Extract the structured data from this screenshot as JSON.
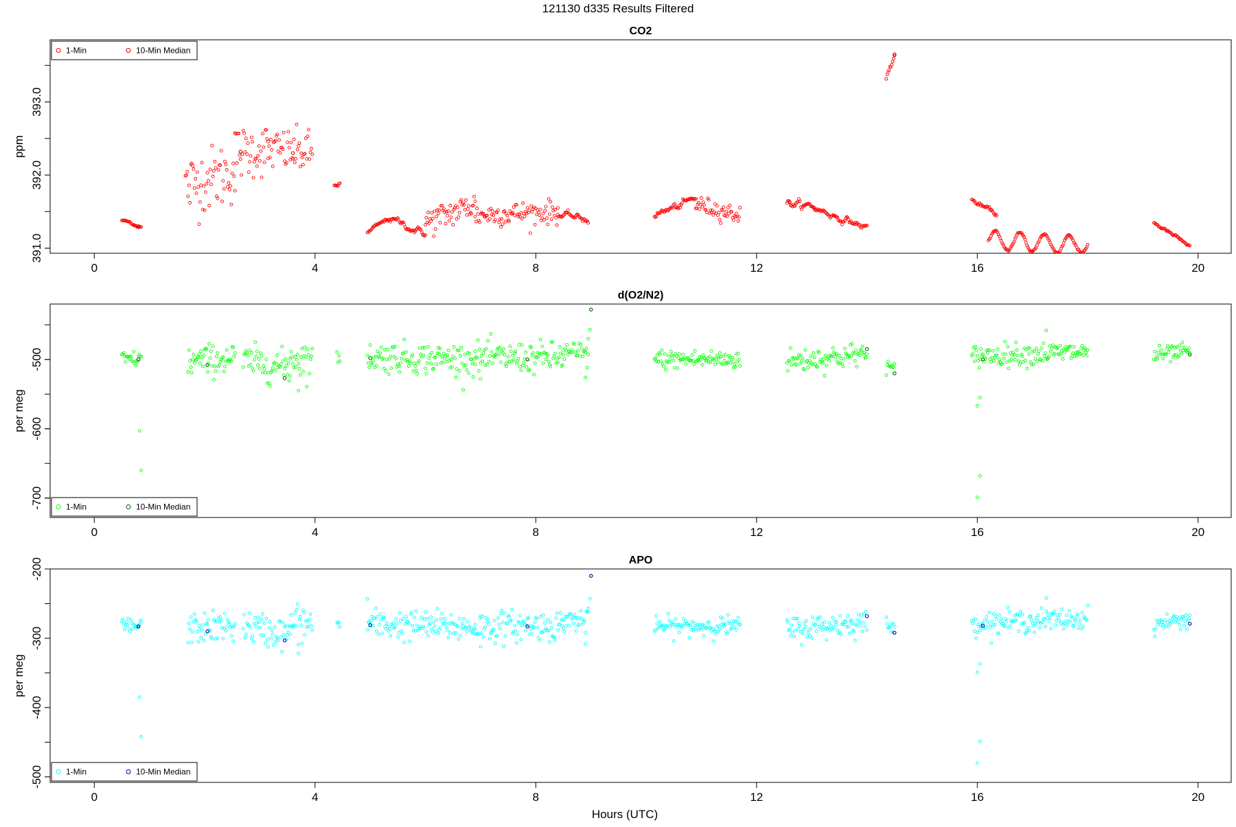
{
  "figure": {
    "title": "121130   d335   Results Filtered",
    "xlabel": "Hours (UTC)"
  },
  "chart_data": [
    {
      "type": "scatter",
      "title": "CO2",
      "xlabel": "",
      "ylabel": "ppm",
      "xlim": [
        -0.8,
        20.6
      ],
      "ylim": [
        390.93,
        393.85
      ],
      "x_ticks": [
        0,
        4,
        8,
        12,
        16,
        20
      ],
      "y_ticks": [
        391.0,
        392.0,
        393.0
      ],
      "y_tick_labels": [
        "391.0",
        "392.0",
        "393.0"
      ],
      "grid": false,
      "legend": {
        "placement": "top-left",
        "entries": [
          "1-Min",
          "10-Min Median"
        ]
      },
      "colors": {
        "one_min": "#ff0000",
        "median": "#cc0000"
      },
      "segments": [
        {
          "x": [
            0.5,
            0.85
          ],
          "y": [
            391.38,
            391.3
          ],
          "noise": 0.02,
          "style": "smooth"
        },
        {
          "x": [
            1.65,
            2.55
          ],
          "y": [
            391.85,
            392.05
          ],
          "noise": 0.22,
          "style": "scatter"
        },
        {
          "x": [
            2.55,
            3.15
          ],
          "y": [
            392.3,
            392.35
          ],
          "noise": 0.18,
          "style": "scatter"
        },
        {
          "x": [
            3.15,
            3.95
          ],
          "y": [
            392.35,
            392.3
          ],
          "noise": 0.15,
          "style": "scatter"
        },
        {
          "x": [
            4.35,
            4.45
          ],
          "y": [
            391.85,
            391.9
          ],
          "noise": 0.04,
          "style": "smooth"
        },
        {
          "x": [
            4.95,
            5.35
          ],
          "y": [
            391.2,
            391.4
          ],
          "noise": 0.03,
          "style": "smooth"
        },
        {
          "x": [
            5.35,
            6.0
          ],
          "y": [
            391.4,
            391.2
          ],
          "noise": 0.04,
          "style": "smooth"
        },
        {
          "x": [
            6.0,
            6.9
          ],
          "y": [
            391.35,
            391.6
          ],
          "noise": 0.1,
          "style": "scatter"
        },
        {
          "x": [
            6.9,
            8.4
          ],
          "y": [
            391.45,
            391.5
          ],
          "noise": 0.08,
          "style": "scatter"
        },
        {
          "x": [
            8.4,
            8.95
          ],
          "y": [
            391.45,
            391.38
          ],
          "noise": 0.04,
          "style": "smooth"
        },
        {
          "x": [
            10.15,
            10.9
          ],
          "y": [
            391.45,
            391.65
          ],
          "noise": 0.05,
          "style": "smooth"
        },
        {
          "x": [
            10.9,
            11.7
          ],
          "y": [
            391.6,
            391.45
          ],
          "noise": 0.06,
          "style": "scatter"
        },
        {
          "x": [
            12.55,
            13.05
          ],
          "y": [
            391.62,
            391.55
          ],
          "noise": 0.05,
          "style": "smooth"
        },
        {
          "x": [
            13.05,
            14.0
          ],
          "y": [
            391.55,
            391.28
          ],
          "noise": 0.04,
          "style": "smooth"
        },
        {
          "x": [
            14.35,
            14.5
          ],
          "y": [
            393.35,
            393.65
          ],
          "noise": 0.06,
          "style": "smooth"
        },
        {
          "x": [
            15.9,
            16.35
          ],
          "y": [
            391.65,
            391.45
          ],
          "noise": 0.03,
          "style": "smooth"
        },
        {
          "x": [
            16.2,
            18.0
          ],
          "y": [
            391.1,
            391.05
          ],
          "noise": 0.02,
          "wave": 0.13,
          "style": "smooth"
        },
        {
          "x": [
            19.2,
            19.85
          ],
          "y": [
            391.35,
            391.02
          ],
          "noise": 0.02,
          "style": "smooth"
        }
      ],
      "outliers": [],
      "median_points": [
        {
          "x": 0.8,
          "y": 391.3
        },
        {
          "x": 2.65,
          "y": 392.32
        },
        {
          "x": 3.6,
          "y": 392.3
        },
        {
          "x": 12.6,
          "y": 391.63
        },
        {
          "x": 14.5,
          "y": 393.65
        }
      ]
    },
    {
      "type": "scatter",
      "title": "d(O2/N2)",
      "xlabel": "",
      "ylabel": "per meg",
      "xlim": [
        -0.8,
        20.6
      ],
      "ylim": [
        -728,
        -420
      ],
      "x_ticks": [
        0,
        4,
        8,
        12,
        16,
        20
      ],
      "y_ticks": [
        -500,
        -600,
        -700
      ],
      "y_tick_labels": [
        "-500",
        "-600",
        "-700"
      ],
      "grid": false,
      "legend": {
        "placement": "bottom-left",
        "entries": [
          "1-Min",
          "10-Min Median"
        ]
      },
      "colors": {
        "one_min": "#00ff00",
        "median": "#006600"
      },
      "segments": [
        {
          "x": [
            0.5,
            0.85
          ],
          "y": [
            -500,
            -500
          ],
          "noise": 6,
          "style": "scatter"
        },
        {
          "x": [
            1.7,
            2.55
          ],
          "y": [
            -503,
            -498
          ],
          "noise": 11,
          "style": "scatter"
        },
        {
          "x": [
            2.7,
            3.55
          ],
          "y": [
            -502,
            -512
          ],
          "noise": 12,
          "style": "scatter"
        },
        {
          "x": [
            3.55,
            3.95
          ],
          "y": [
            -497,
            -500
          ],
          "noise": 14,
          "style": "scatter"
        },
        {
          "x": [
            4.4,
            4.45
          ],
          "y": [
            -497,
            -500
          ],
          "noise": 4,
          "style": "scatter"
        },
        {
          "x": [
            4.95,
            6.9
          ],
          "y": [
            -496,
            -500
          ],
          "noise": 11,
          "style": "scatter"
        },
        {
          "x": [
            6.9,
            8.5
          ],
          "y": [
            -498,
            -497
          ],
          "noise": 11,
          "style": "scatter"
        },
        {
          "x": [
            8.5,
            8.95
          ],
          "y": [
            -490,
            -493
          ],
          "noise": 9,
          "style": "scatter"
        },
        {
          "x": [
            10.15,
            11.7
          ],
          "y": [
            -500,
            -500
          ],
          "noise": 7,
          "style": "scatter"
        },
        {
          "x": [
            12.55,
            14.0
          ],
          "y": [
            -503,
            -492
          ],
          "noise": 9,
          "style": "scatter"
        },
        {
          "x": [
            14.35,
            14.5
          ],
          "y": [
            -508,
            -515
          ],
          "noise": 5,
          "style": "scatter"
        },
        {
          "x": [
            15.9,
            18.0
          ],
          "y": [
            -495,
            -489
          ],
          "noise": 8,
          "style": "scatter"
        },
        {
          "x": [
            19.2,
            19.85
          ],
          "y": [
            -495,
            -488
          ],
          "noise": 6,
          "style": "scatter"
        }
      ],
      "outliers": [
        {
          "x": 0.82,
          "y": -603
        },
        {
          "x": 0.85,
          "y": -660
        },
        {
          "x": 8.95,
          "y": -470
        },
        {
          "x": 8.98,
          "y": -457
        },
        {
          "x": 9.0,
          "y": -428
        },
        {
          "x": 8.9,
          "y": -526
        },
        {
          "x": 3.7,
          "y": -545
        },
        {
          "x": 16.05,
          "y": -555
        },
        {
          "x": 16.0,
          "y": -567
        },
        {
          "x": 16.05,
          "y": -668
        },
        {
          "x": 16.0,
          "y": -699
        },
        {
          "x": 17.25,
          "y": -458
        },
        {
          "x": 7.0,
          "y": -528
        }
      ],
      "median_points": [
        {
          "x": 0.8,
          "y": -500
        },
        {
          "x": 2.05,
          "y": -508
        },
        {
          "x": 3.45,
          "y": -527
        },
        {
          "x": 5.0,
          "y": -498
        },
        {
          "x": 7.85,
          "y": -500
        },
        {
          "x": 9.0,
          "y": -428
        },
        {
          "x": 14.0,
          "y": -485
        },
        {
          "x": 14.5,
          "y": -520
        },
        {
          "x": 16.1,
          "y": -500
        },
        {
          "x": 19.85,
          "y": -493
        }
      ]
    },
    {
      "type": "scatter",
      "title": "APO",
      "xlabel": "Hours (UTC)",
      "ylabel": "per meg",
      "xlim": [
        -0.8,
        20.6
      ],
      "ylim": [
        -508,
        -200
      ],
      "x_ticks": [
        0,
        4,
        8,
        12,
        16,
        20
      ],
      "y_ticks": [
        -200,
        -300,
        -400,
        -500
      ],
      "y_tick_labels": [
        "-200",
        "-300",
        "-400",
        "-500"
      ],
      "grid": false,
      "legend": {
        "placement": "bottom-left",
        "entries": [
          "1-Min",
          "10-Min Median"
        ]
      },
      "colors": {
        "one_min": "#00ffff",
        "median": "#000099"
      },
      "segments": [
        {
          "x": [
            0.5,
            0.85
          ],
          "y": [
            -282,
            -283
          ],
          "noise": 6,
          "style": "scatter"
        },
        {
          "x": [
            1.7,
            2.55
          ],
          "y": [
            -286,
            -283
          ],
          "noise": 11,
          "style": "scatter"
        },
        {
          "x": [
            2.7,
            3.55
          ],
          "y": [
            -283,
            -295
          ],
          "noise": 12,
          "style": "scatter"
        },
        {
          "x": [
            3.55,
            3.95
          ],
          "y": [
            -278,
            -280
          ],
          "noise": 14,
          "style": "scatter"
        },
        {
          "x": [
            4.4,
            4.45
          ],
          "y": [
            -278,
            -280
          ],
          "noise": 4,
          "style": "scatter"
        },
        {
          "x": [
            4.95,
            6.9
          ],
          "y": [
            -280,
            -284
          ],
          "noise": 11,
          "style": "scatter"
        },
        {
          "x": [
            6.9,
            8.5
          ],
          "y": [
            -283,
            -282
          ],
          "noise": 11,
          "style": "scatter"
        },
        {
          "x": [
            8.5,
            8.95
          ],
          "y": [
            -272,
            -276
          ],
          "noise": 9,
          "style": "scatter"
        },
        {
          "x": [
            10.15,
            11.7
          ],
          "y": [
            -283,
            -282
          ],
          "noise": 7,
          "style": "scatter"
        },
        {
          "x": [
            12.55,
            14.0
          ],
          "y": [
            -288,
            -276
          ],
          "noise": 9,
          "style": "scatter"
        },
        {
          "x": [
            14.35,
            14.5
          ],
          "y": [
            -280,
            -288
          ],
          "noise": 5,
          "style": "scatter"
        },
        {
          "x": [
            15.9,
            18.0
          ],
          "y": [
            -278,
            -272
          ],
          "noise": 8,
          "style": "scatter"
        },
        {
          "x": [
            19.2,
            19.85
          ],
          "y": [
            -280,
            -272
          ],
          "noise": 6,
          "style": "scatter"
        }
      ],
      "outliers": [
        {
          "x": 0.82,
          "y": -385
        },
        {
          "x": 0.85,
          "y": -442
        },
        {
          "x": 8.95,
          "y": -262
        },
        {
          "x": 8.98,
          "y": -243
        },
        {
          "x": 9.0,
          "y": -210
        },
        {
          "x": 8.9,
          "y": -308
        },
        {
          "x": 3.7,
          "y": -322
        },
        {
          "x": 16.05,
          "y": -337
        },
        {
          "x": 16.0,
          "y": -349
        },
        {
          "x": 16.05,
          "y": -449
        },
        {
          "x": 16.0,
          "y": -480
        },
        {
          "x": 17.25,
          "y": -242
        },
        {
          "x": 7.0,
          "y": -312
        },
        {
          "x": 4.95,
          "y": -243
        }
      ],
      "median_points": [
        {
          "x": 0.8,
          "y": -283
        },
        {
          "x": 2.05,
          "y": -290
        },
        {
          "x": 3.45,
          "y": -303
        },
        {
          "x": 5.0,
          "y": -281
        },
        {
          "x": 7.85,
          "y": -283
        },
        {
          "x": 9.0,
          "y": -210
        },
        {
          "x": 14.0,
          "y": -268
        },
        {
          "x": 14.5,
          "y": -292
        },
        {
          "x": 16.1,
          "y": -282
        },
        {
          "x": 19.85,
          "y": -279
        }
      ]
    }
  ]
}
